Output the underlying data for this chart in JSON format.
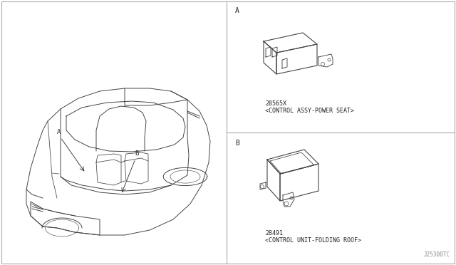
{
  "bg_color": "#ffffff",
  "border_color": "#aaaaaa",
  "line_color": "#444444",
  "text_color": "#222222",
  "label_A": "A",
  "label_B": "B",
  "part_A_number": "28565X",
  "part_A_desc": "<CONTROL ASSY-POWER SEAT>",
  "part_B_number": "28491",
  "part_B_desc": "<CONTROL UNIT-FOLDING ROOF>",
  "footnote": "J25300TC",
  "fig_width": 6.4,
  "fig_height": 3.72,
  "dpi": 100
}
